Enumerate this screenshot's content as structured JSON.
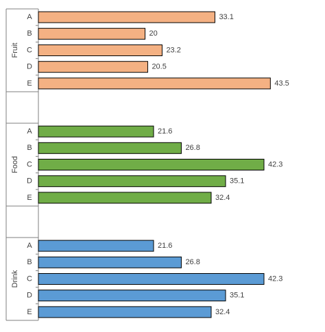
{
  "chart_data": {
    "type": "bar",
    "orientation": "horizontal",
    "grouped_axis": true,
    "title": "",
    "xlabel": "",
    "ylabel": "",
    "xlim": [
      0,
      45
    ],
    "grid": false,
    "legend": "none",
    "groups": [
      {
        "label": "Fruit",
        "color": "#F4B183",
        "categories": [
          "A",
          "B",
          "C",
          "D",
          "E"
        ],
        "values": [
          33.1,
          20,
          23.2,
          20.5,
          43.5
        ],
        "value_labels": [
          "33.1",
          "20",
          "23.2",
          "20.5",
          "43.5"
        ]
      },
      {
        "label": "Food",
        "color": "#70AD47",
        "categories": [
          "A",
          "B",
          "C",
          "D",
          "E"
        ],
        "values": [
          21.6,
          26.8,
          42.3,
          35.1,
          32.4
        ],
        "value_labels": [
          "21.6",
          "26.8",
          "42.3",
          "35.1",
          "32.4"
        ]
      },
      {
        "label": "Drink",
        "color": "#5B9BD5",
        "categories": [
          "A",
          "B",
          "C",
          "D",
          "E"
        ],
        "values": [
          21.6,
          26.8,
          42.3,
          35.1,
          32.4
        ],
        "value_labels": [
          "21.6",
          "26.8",
          "42.3",
          "35.1",
          "32.4"
        ]
      }
    ]
  }
}
